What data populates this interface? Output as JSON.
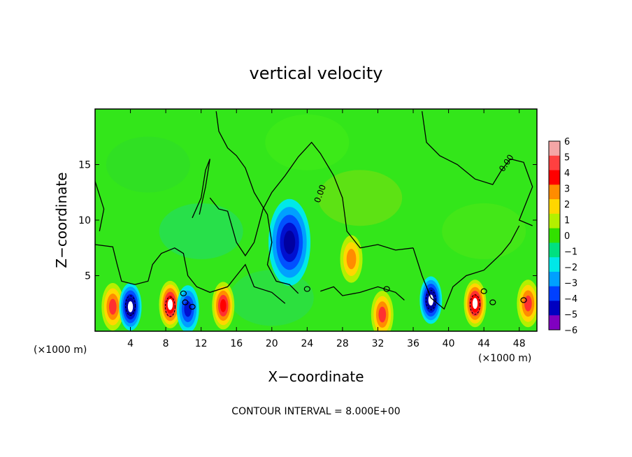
{
  "chart_data": {
    "type": "heatmap",
    "title": "vertical velocity",
    "xlabel": "X−coordinate",
    "ylabel": "Z−coordinate",
    "x_unit_label": "(×1000 m)",
    "x_unit_label_bottom": "(×1000 m)",
    "xlim": [
      0,
      50
    ],
    "ylim": [
      0,
      20
    ],
    "x_ticks": [
      4,
      8,
      12,
      16,
      20,
      24,
      28,
      32,
      36,
      40,
      44,
      48
    ],
    "y_ticks": [
      5,
      10,
      15
    ],
    "colorbar": {
      "levels": [
        "6",
        "5",
        "4",
        "3",
        "2",
        "1",
        "0",
        "−1",
        "−2",
        "−3",
        "−4",
        "−5",
        "−6"
      ],
      "colors": [
        "#f4a6a6",
        "#ff4040",
        "#ff0000",
        "#ff8c00",
        "#ffd700",
        "#b4f000",
        "#32e000",
        "#00e080",
        "#00e8e8",
        "#00a0ff",
        "#0040ff",
        "#0000c0",
        "#8000c0"
      ]
    },
    "contour_labels": [
      "0.00",
      "0.00"
    ],
    "footnote": "CONTOUR INTERVAL = 8.000E+00",
    "features": [
      {
        "type": "updraft",
        "x": 2,
        "z": 2.2,
        "value": 4
      },
      {
        "type": "downdraft",
        "x": 4,
        "z": 2.2,
        "value": -6
      },
      {
        "type": "updraft",
        "x": 8.5,
        "z": 2.4,
        "value": 6
      },
      {
        "type": "downdraft",
        "x": 10.5,
        "z": 2.0,
        "value": -4
      },
      {
        "type": "updraft",
        "x": 14.5,
        "z": 2.3,
        "value": 5
      },
      {
        "type": "downdraft",
        "x": 22,
        "z": 8,
        "value": -5
      },
      {
        "type": "updraft",
        "x": 29,
        "z": 6.5,
        "value": 3
      },
      {
        "type": "updraft",
        "x": 32.5,
        "z": 1.5,
        "value": 4
      },
      {
        "type": "downdraft",
        "x": 38,
        "z": 2.8,
        "value": -6
      },
      {
        "type": "updraft",
        "x": 43,
        "z": 2.5,
        "value": 6
      },
      {
        "type": "updraft",
        "x": 49,
        "z": 2.5,
        "value": 4
      }
    ]
  }
}
